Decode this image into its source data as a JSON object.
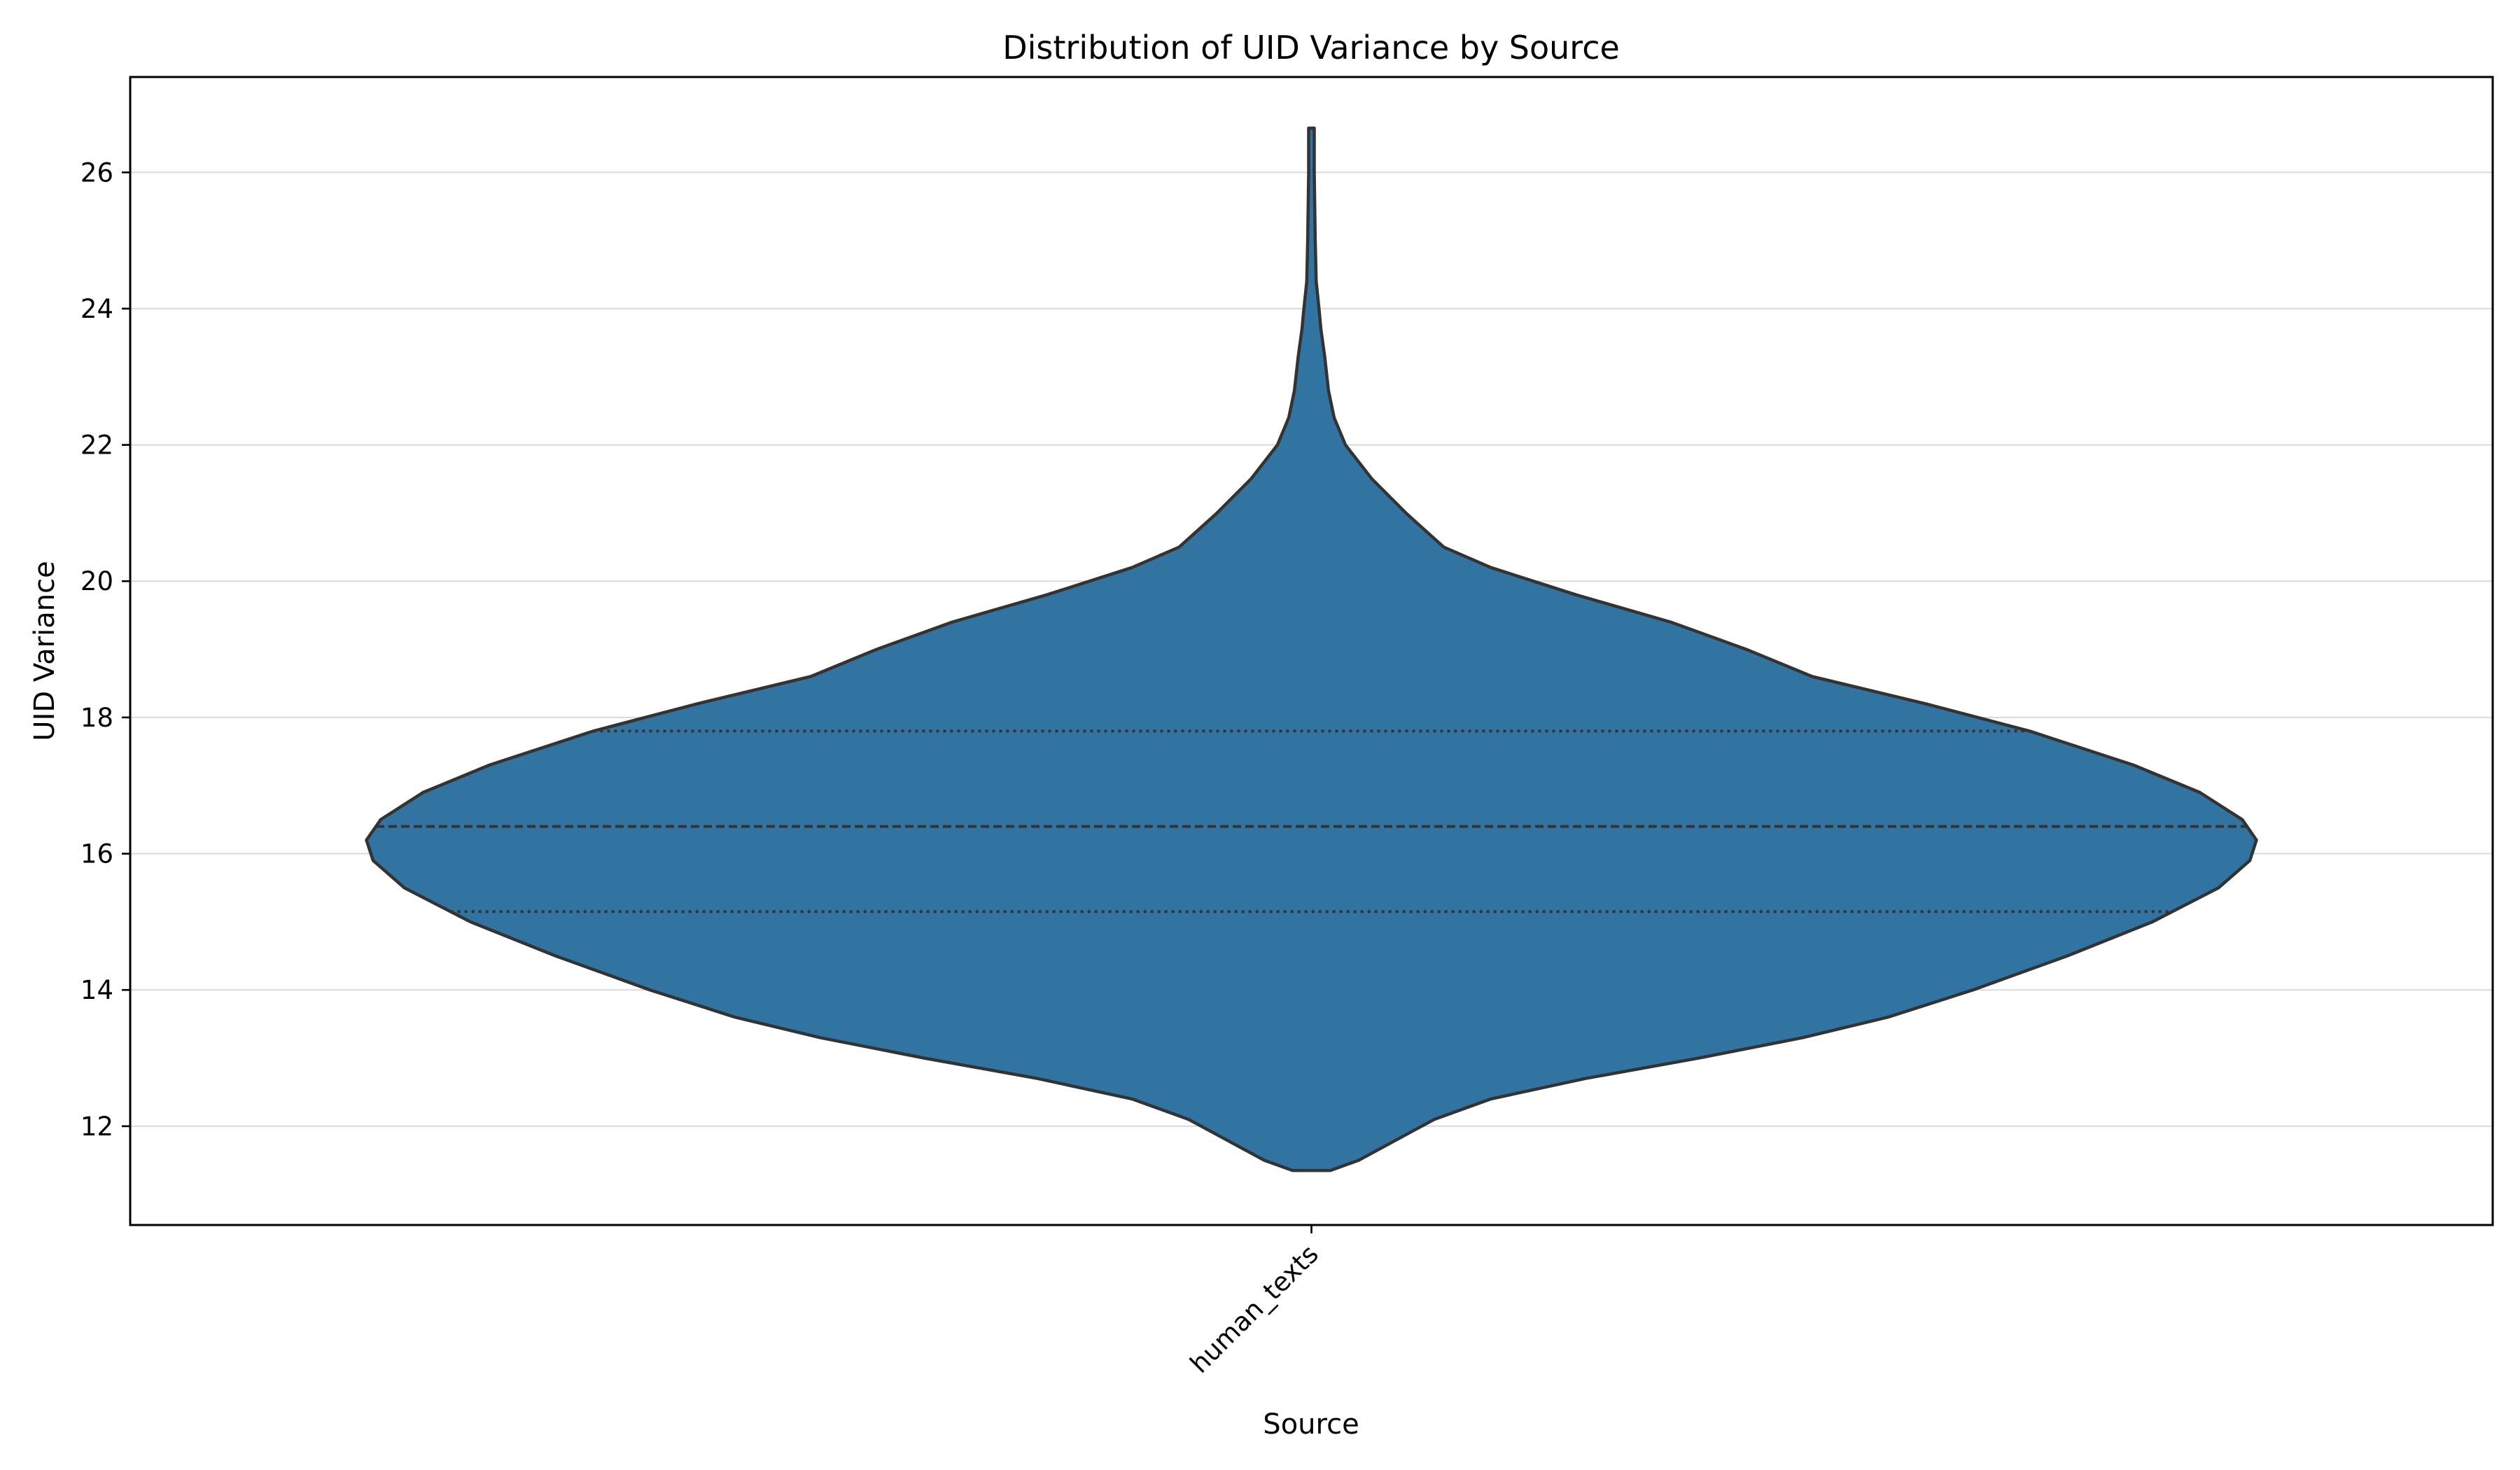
{
  "chart_data": {
    "type": "violin",
    "title": "Distribution of UID Variance by Source",
    "xlabel": "Source",
    "ylabel": "UID Variance",
    "categories": [
      "human_texts"
    ],
    "ylim": [
      10.55,
      27.4
    ],
    "yticks": [
      12,
      14,
      16,
      18,
      20,
      22,
      24,
      26
    ],
    "grid": "horizontal",
    "color": "#3274a1",
    "edge_color": "#333333",
    "series": [
      {
        "name": "human_texts",
        "min": 11.35,
        "q1": 15.15,
        "median": 16.4,
        "q3": 17.8,
        "max": 26.65,
        "density_profile": [
          [
            11.35,
            0.02
          ],
          [
            11.5,
            0.05
          ],
          [
            11.8,
            0.09
          ],
          [
            12.1,
            0.13
          ],
          [
            12.4,
            0.19
          ],
          [
            12.7,
            0.29
          ],
          [
            13.0,
            0.41
          ],
          [
            13.3,
            0.52
          ],
          [
            13.6,
            0.61
          ],
          [
            14.0,
            0.7
          ],
          [
            14.5,
            0.8
          ],
          [
            15.0,
            0.89
          ],
          [
            15.5,
            0.96
          ],
          [
            15.9,
            0.993
          ],
          [
            16.2,
            1.0
          ],
          [
            16.5,
            0.985
          ],
          [
            16.9,
            0.94
          ],
          [
            17.3,
            0.87
          ],
          [
            17.8,
            0.76
          ],
          [
            18.2,
            0.65
          ],
          [
            18.6,
            0.53
          ],
          [
            19.0,
            0.46
          ],
          [
            19.4,
            0.38
          ],
          [
            19.8,
            0.28
          ],
          [
            20.2,
            0.19
          ],
          [
            20.5,
            0.14
          ],
          [
            21.0,
            0.1
          ],
          [
            21.5,
            0.064
          ],
          [
            22.0,
            0.036
          ],
          [
            22.4,
            0.024
          ],
          [
            22.8,
            0.018
          ],
          [
            23.3,
            0.014
          ],
          [
            23.7,
            0.01
          ],
          [
            24.0,
            0.008
          ],
          [
            24.4,
            0.005
          ],
          [
            25.0,
            0.004
          ],
          [
            26.0,
            0.003
          ],
          [
            26.65,
            0.003
          ]
        ]
      }
    ]
  }
}
